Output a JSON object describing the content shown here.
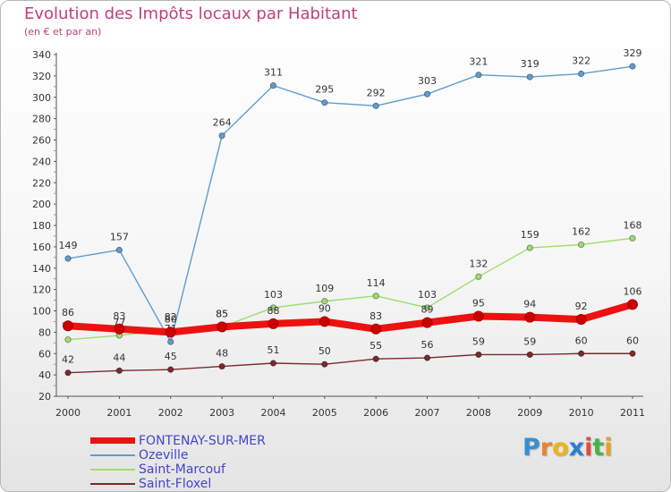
{
  "header": {
    "title": "Evolution des Impôts locaux par Habitant",
    "subtitle": "(en € et par an)"
  },
  "brand": {
    "letters": [
      "P",
      "r",
      "o",
      "x",
      "i",
      "t",
      "i"
    ],
    "colors": [
      "#3a8fd0",
      "#e9852a",
      "#f0b21a",
      "#2a7fd2",
      "#e54a3a",
      "#48b248",
      "#e8a020"
    ]
  },
  "chart_data": {
    "type": "line",
    "title": "Evolution des Impôts locaux par Habitant",
    "subtitle": "(en € et par an)",
    "xlabel": "",
    "ylabel": "",
    "ylim": [
      20,
      340
    ],
    "ytick_step": 20,
    "grid": false,
    "legend_position": "bottom-left",
    "x": [
      "2000",
      "2001",
      "2002",
      "2003",
      "2004",
      "2005",
      "2006",
      "2007",
      "2008",
      "2009",
      "2010",
      "2011"
    ],
    "series": [
      {
        "name": "FONTENAY-SUR-MER",
        "color": "#ee1111",
        "values": [
          86,
          83,
          80,
          85,
          88,
          90,
          83,
          89,
          95,
          94,
          92,
          106
        ],
        "labels": [
          "86",
          "83",
          "80",
          "85",
          "88",
          "90",
          "83",
          "89",
          "95",
          "94",
          "92",
          "106"
        ]
      },
      {
        "name": "Ozeville",
        "color": "#5f9ccf",
        "values": [
          149,
          157,
          71,
          264,
          311,
          295,
          292,
          303,
          321,
          319,
          322,
          329
        ],
        "labels": [
          "149",
          "157",
          "71",
          "264",
          "311",
          "295",
          "292",
          "303",
          "321",
          "319",
          "322",
          "329"
        ]
      },
      {
        "name": "Saint-Marcouf",
        "color": "#9ddd6e",
        "values": [
          73,
          77,
          82,
          85,
          103,
          109,
          114,
          103,
          132,
          159,
          162,
          168
        ],
        "labels": [
          "73",
          "77",
          "82",
          "85",
          "103",
          "109",
          "114",
          "103",
          "132",
          "159",
          "162",
          "168"
        ]
      },
      {
        "name": "Saint-Floxel",
        "color": "#7a2a2a",
        "values": [
          42,
          44,
          45,
          48,
          51,
          50,
          55,
          56,
          59,
          59,
          60,
          60
        ],
        "labels": [
          "42",
          "44",
          "45",
          "48",
          "51",
          "50",
          "55",
          "56",
          "59",
          "59",
          "60",
          "60"
        ]
      }
    ]
  }
}
